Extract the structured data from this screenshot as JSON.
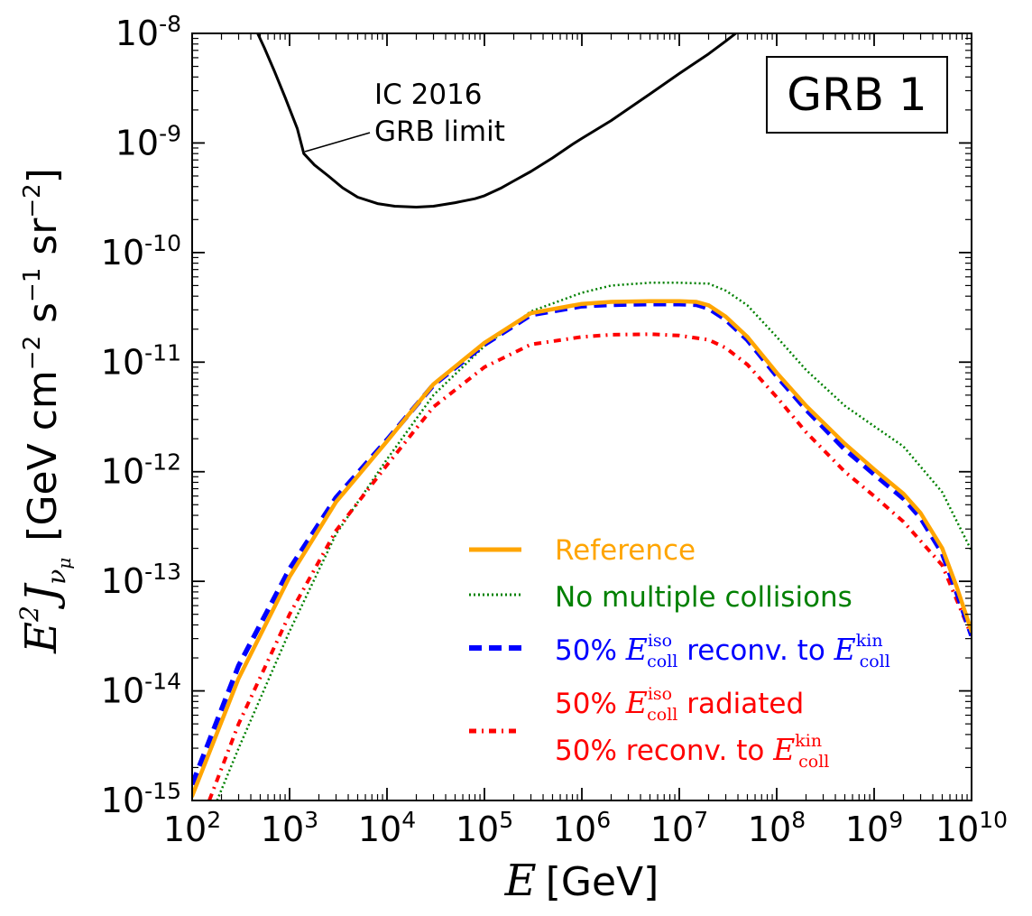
{
  "chart_data": {
    "type": "line",
    "x_scale": "log",
    "y_scale": "log",
    "xlim": [
      100,
      10000000000
    ],
    "ylim": [
      1e-15,
      1e-08
    ],
    "x_ticks": [
      {
        "base": "10",
        "exp": "2",
        "value": 100
      },
      {
        "base": "10",
        "exp": "3",
        "value": 1000
      },
      {
        "base": "10",
        "exp": "4",
        "value": 10000
      },
      {
        "base": "10",
        "exp": "5",
        "value": 100000
      },
      {
        "base": "10",
        "exp": "6",
        "value": 1000000
      },
      {
        "base": "10",
        "exp": "7",
        "value": 10000000
      },
      {
        "base": "10",
        "exp": "8",
        "value": 100000000
      },
      {
        "base": "10",
        "exp": "9",
        "value": 1000000000
      },
      {
        "base": "10",
        "exp": "10",
        "value": 10000000000
      }
    ],
    "y_ticks": [
      {
        "base": "10",
        "exp": "-8",
        "value": 1e-08
      },
      {
        "base": "10",
        "exp": "-9",
        "value": 1e-09
      },
      {
        "base": "10",
        "exp": "-10",
        "value": 1e-10
      },
      {
        "base": "10",
        "exp": "-11",
        "value": 1e-11
      },
      {
        "base": "10",
        "exp": "-12",
        "value": 1e-12
      },
      {
        "base": "10",
        "exp": "-13",
        "value": 1e-13
      },
      {
        "base": "10",
        "exp": "-14",
        "value": 1e-14
      },
      {
        "base": "10",
        "exp": "-15",
        "value": 1e-15
      }
    ],
    "xlabel": {
      "sym": "E",
      "unit": "[GeV]"
    },
    "ylabel": {
      "sym": "E",
      "sup": "2",
      "fn": "J",
      "sub1": "ν",
      "sub2": "μ",
      "unit": "[GeV cm",
      "unit_exp1": "−2",
      "unit_mid": " s",
      "unit_exp2": "−1",
      "unit_mid2": " sr",
      "unit_exp3": "−2",
      "unit_end": "]"
    },
    "box_label": "GRB 1",
    "annotation": {
      "line1": "IC 2016",
      "line2": "GRB limit"
    },
    "grid": false,
    "legend_position": "lower-right",
    "series": [
      {
        "name": "IC 2016 GRB limit",
        "color": "#000000",
        "style": "solid",
        "x": [
          470,
          550,
          700,
          900,
          1200,
          1400,
          1800,
          2500,
          3500,
          5000,
          8000,
          12000,
          20000,
          30000,
          50000,
          80000,
          100000,
          150000,
          200000,
          300000,
          500000,
          800000,
          1000000,
          2000000,
          5000000,
          10000000,
          20000000,
          30000000,
          38000000
        ],
        "y": [
          1e-08,
          7.4e-09,
          4.5e-09,
          2.6e-09,
          1.35e-09,
          8e-10,
          6.3e-10,
          5e-10,
          3.9e-10,
          3.2e-10,
          2.8e-10,
          2.65e-10,
          2.6e-10,
          2.65e-10,
          2.85e-10,
          3.1e-10,
          3.3e-10,
          3.9e-10,
          4.5e-10,
          5.5e-10,
          7.3e-10,
          9.7e-10,
          1.1e-09,
          1.6e-09,
          2.8e-09,
          4.3e-09,
          6.5e-09,
          8.5e-09,
          1e-08
        ]
      },
      {
        "name": "Reference",
        "color": "#FFA500",
        "style": "solid",
        "x": [
          100,
          300,
          1000,
          3000,
          10000,
          30000,
          100000,
          300000,
          1000000,
          2000000,
          5000000,
          10000000,
          15000000,
          20000000,
          30000000,
          50000000,
          100000000,
          200000000,
          500000000,
          1000000000,
          2000000000,
          3000000000,
          5000000000,
          7000000000,
          10000000000
        ],
        "y": [
          1.1e-15,
          1.3e-14,
          1.1e-13,
          5.3e-13,
          1.9e-12,
          6.3e-12,
          1.5e-11,
          2.8e-11,
          3.4e-11,
          3.55e-11,
          3.6e-11,
          3.6e-11,
          3.55e-11,
          3.3e-11,
          2.6e-11,
          1.7e-11,
          8e-12,
          4e-12,
          1.8e-12,
          1.05e-12,
          6.3e-13,
          4.2e-13,
          2e-13,
          9e-14,
          3.5e-14
        ]
      },
      {
        "name": "No multiple collisions",
        "color": "#008000",
        "style": "dotted",
        "x": [
          180,
          300,
          1000,
          3000,
          10000,
          30000,
          100000,
          300000,
          1000000,
          2000000,
          5000000,
          10000000,
          20000000,
          30000000,
          50000000,
          100000000,
          200000000,
          500000000,
          1000000000,
          2000000000,
          5000000000,
          10000000000
        ],
        "y": [
          1e-15,
          3e-15,
          3.5e-14,
          2.7e-13,
          1.3e-12,
          5e-12,
          1.4e-11,
          2.9e-11,
          4.3e-11,
          5e-11,
          5.3e-11,
          5.3e-11,
          5.2e-11,
          4.5e-11,
          3.3e-11,
          1.7e-11,
          8.5e-12,
          4e-12,
          2.6e-12,
          1.7e-12,
          6.5e-13,
          1.9e-13
        ]
      },
      {
        "name": "50% E_coll^iso reconv. to E_coll^kin",
        "legend_parts": {
          "pre": "50% ",
          "sym": "E",
          "sub": "coll",
          "sup": "iso",
          "mid": " reconv. to ",
          "sym2": "E",
          "sub2": "coll",
          "sup2": "kin"
        },
        "color": "#0000FF",
        "style": "dashed",
        "x": [
          100,
          300,
          1000,
          3000,
          10000,
          30000,
          100000,
          300000,
          1000000,
          2000000,
          5000000,
          10000000,
          15000000,
          20000000,
          30000000,
          50000000,
          100000000,
          200000000,
          500000000,
          1000000000,
          2000000000,
          3000000000,
          5000000000,
          7000000000,
          10000000000
        ],
        "y": [
          1.4e-15,
          1.7e-14,
          1.3e-13,
          5.8e-13,
          1.95e-12,
          6.2e-12,
          1.45e-11,
          2.7e-11,
          3.25e-11,
          3.35e-11,
          3.4e-11,
          3.4e-11,
          3.35e-11,
          3.1e-11,
          2.45e-11,
          1.6e-11,
          7.5e-12,
          3.7e-12,
          1.6e-12,
          9.5e-13,
          5.7e-13,
          3.8e-13,
          1.8e-13,
          8e-14,
          3.2e-14
        ]
      },
      {
        "name": "50% E_coll^iso radiated 50% reconv. to E_coll^kin",
        "legend_parts": {
          "pre": "50% ",
          "sym": "E",
          "sub": "coll",
          "sup": "iso",
          "mid": " radiated",
          "line2": "50% reconv. to ",
          "sym2": "E",
          "sub2": "coll",
          "sup2": "kin"
        },
        "color": "#FF0000",
        "style": "dashdot",
        "x": [
          150,
          300,
          1000,
          3000,
          10000,
          30000,
          100000,
          300000,
          1000000,
          2000000,
          5000000,
          10000000,
          20000000,
          30000000,
          50000000,
          100000000,
          200000000,
          500000000,
          1000000000,
          2000000000,
          5000000000,
          10000000000
        ],
        "y": [
          1e-15,
          5e-15,
          5e-14,
          2.9e-13,
          1.15e-12,
          3.9e-12,
          9e-12,
          1.45e-11,
          1.7e-11,
          1.78e-11,
          1.8e-11,
          1.75e-11,
          1.6e-11,
          1.35e-11,
          9.5e-12,
          4.8e-12,
          2.3e-12,
          1e-12,
          6e-13,
          3.5e-13,
          1.4e-13,
          3.2e-14
        ]
      }
    ]
  }
}
